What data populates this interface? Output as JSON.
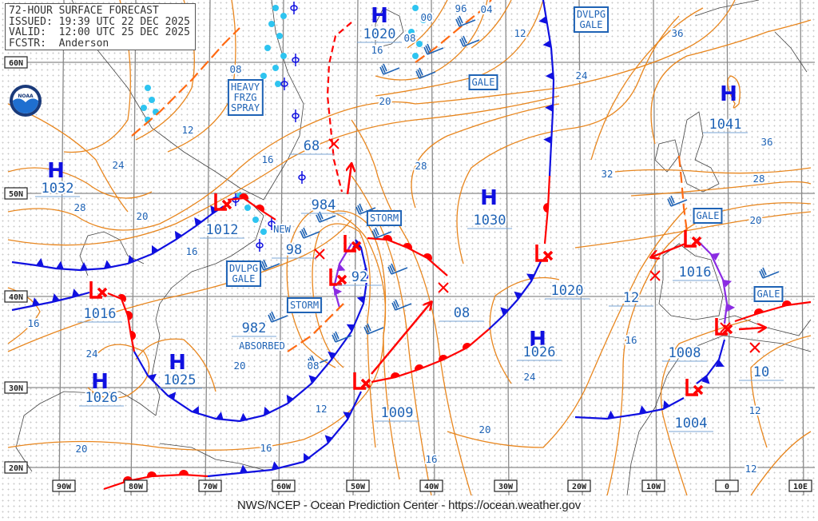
{
  "header": {
    "title": "72-HOUR SURFACE FORECAST",
    "issued": "ISSUED: 19:39 UTC 22 DEC 2025",
    "valid": "VALID:  12:00 UTC 25 DEC 2025",
    "forecaster": "FCSTR:  Anderson"
  },
  "footer": "NWS/NCEP - Ocean Prediction Center - https://ocean.weather.gov",
  "logo_text": "NOAA",
  "lon_labels": [
    "90W",
    "80W",
    "70W",
    "60W",
    "50W",
    "40W",
    "30W",
    "20W",
    "10W",
    "0",
    "10E"
  ],
  "lat_labels": [
    "60N",
    "50N",
    "40N",
    "30N",
    "20N"
  ],
  "highs": [
    {
      "symbol": "H",
      "pressure": "1020"
    },
    {
      "symbol": "H",
      "pressure": "1032"
    },
    {
      "symbol": "H",
      "pressure": "1025"
    },
    {
      "symbol": "H",
      "pressure": "1026"
    },
    {
      "symbol": "H",
      "pressure": "1030"
    },
    {
      "symbol": "H",
      "pressure": "1026"
    },
    {
      "symbol": "H",
      "pressure": "1041"
    }
  ],
  "lows": [
    {
      "pressure": "1012"
    },
    {
      "pressure": "984"
    },
    {
      "pressure": "92"
    },
    {
      "pressure": "1016"
    },
    {
      "pressure": "1009"
    },
    {
      "pressure": "1020"
    },
    {
      "pressure": "1016"
    },
    {
      "pressure": "1008"
    },
    {
      "pressure": "1004"
    }
  ],
  "other_pressures": [
    "98",
    "982",
    "68",
    "08",
    "12",
    "10"
  ],
  "annotations": {
    "new": "NEW",
    "absorbed": "ABSORBED"
  },
  "isobar_labels": [
    "12",
    "24",
    "28",
    "20",
    "16",
    "16",
    "24",
    "20",
    "08",
    "12",
    "16",
    "20",
    "16",
    "20",
    "24",
    "16",
    "12",
    "12",
    "20",
    "28",
    "36",
    "32",
    "24",
    "36",
    "12",
    "28",
    "20",
    "16",
    "08",
    "16",
    "08",
    "00",
    "96",
    "04"
  ],
  "warnings": [
    "HEAVY FRZG SPRAY",
    "DVLPG GALE",
    "GALE",
    "STORM",
    "STORM",
    "DVLPG GALE",
    "GALE",
    "GALE"
  ],
  "colors": {
    "isobar": "#e8861e",
    "cold_front": "#1010e0",
    "warm_front": "#ff0000",
    "occluded_front": "#8a2be2",
    "label": "#1f63b5",
    "ice": "#2ec4f0"
  }
}
